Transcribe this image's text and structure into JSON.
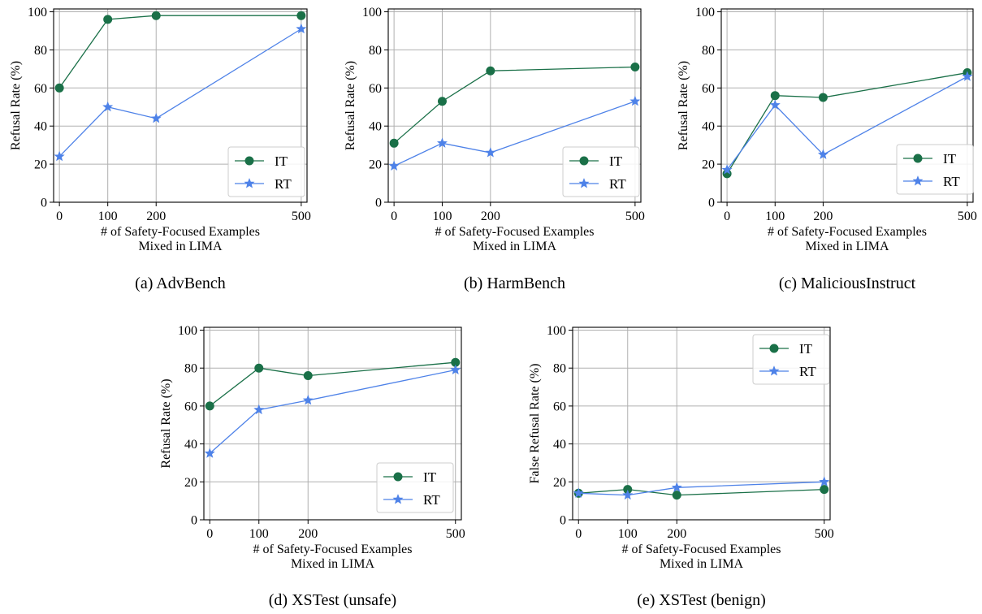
{
  "colors": {
    "IT": "#1a7048",
    "RT": "#4e82e8",
    "grid": "#b0b0b0",
    "frame": "#000000"
  },
  "chart_data": [
    {
      "type": "line",
      "caption": "(a) AdvBench",
      "ylabel": "Refusal Rate (%)",
      "xlabel": [
        "# of Safety-Focused Examples",
        "Mixed in LIMA"
      ],
      "x": [
        0,
        100,
        200,
        500
      ],
      "xticks": [
        "0",
        "100",
        "200",
        "500"
      ],
      "yticks": [
        "0",
        "20",
        "40",
        "60",
        "80",
        "100"
      ],
      "ylim": [
        0,
        100
      ],
      "grid": true,
      "legend_position": "lower-right",
      "series": [
        {
          "name": "IT",
          "marker": "circle",
          "values": [
            60,
            96,
            98,
            98
          ]
        },
        {
          "name": "RT",
          "marker": "star",
          "values": [
            24,
            50,
            44,
            91
          ]
        }
      ]
    },
    {
      "type": "line",
      "caption": "(b) HarmBench",
      "ylabel": "Refusal Rate (%)",
      "xlabel": [
        "# of Safety-Focused Examples",
        "Mixed in LIMA"
      ],
      "x": [
        0,
        100,
        200,
        500
      ],
      "xticks": [
        "0",
        "100",
        "200",
        "500"
      ],
      "yticks": [
        "0",
        "20",
        "40",
        "60",
        "80",
        "100"
      ],
      "ylim": [
        0,
        100
      ],
      "grid": true,
      "legend_position": "lower-right",
      "series": [
        {
          "name": "IT",
          "marker": "circle",
          "values": [
            31,
            53,
            69,
            71
          ]
        },
        {
          "name": "RT",
          "marker": "star",
          "values": [
            19,
            31,
            26,
            53
          ]
        }
      ]
    },
    {
      "type": "line",
      "caption": "(c) MaliciousInstruct",
      "ylabel": "Refusal Rate (%)",
      "xlabel": [
        "# of Safety-Focused Examples",
        "Mixed in LIMA"
      ],
      "x": [
        0,
        100,
        200,
        500
      ],
      "xticks": [
        "0",
        "100",
        "200",
        "500"
      ],
      "yticks": [
        "0",
        "20",
        "40",
        "60",
        "80",
        "100"
      ],
      "ylim": [
        0,
        100
      ],
      "grid": true,
      "legend_position": "lower-right",
      "series": [
        {
          "name": "IT",
          "marker": "circle",
          "values": [
            15,
            56,
            55,
            68
          ]
        },
        {
          "name": "RT",
          "marker": "star",
          "values": [
            17,
            51,
            25,
            66
          ]
        }
      ]
    },
    {
      "type": "line",
      "caption": "(d) XSTest (unsafe)",
      "ylabel": "Refusal Rate (%)",
      "xlabel": [
        "# of Safety-Focused Examples",
        "Mixed in LIMA"
      ],
      "x": [
        0,
        100,
        200,
        500
      ],
      "xticks": [
        "0",
        "100",
        "200",
        "500"
      ],
      "yticks": [
        "0",
        "20",
        "40",
        "60",
        "80",
        "100"
      ],
      "ylim": [
        0,
        100
      ],
      "grid": true,
      "legend_position": "lower-right",
      "series": [
        {
          "name": "IT",
          "marker": "circle",
          "values": [
            60,
            80,
            76,
            83
          ]
        },
        {
          "name": "RT",
          "marker": "star",
          "values": [
            35,
            58,
            63,
            79
          ]
        }
      ]
    },
    {
      "type": "line",
      "caption": "(e) XSTest (benign)",
      "ylabel": "False Refusal Rate (%)",
      "xlabel": [
        "# of Safety-Focused Examples",
        "Mixed in LIMA"
      ],
      "x": [
        0,
        100,
        200,
        500
      ],
      "xticks": [
        "0",
        "100",
        "200",
        "500"
      ],
      "yticks": [
        "0",
        "20",
        "40",
        "60",
        "80",
        "100"
      ],
      "ylim": [
        0,
        100
      ],
      "grid": true,
      "legend_position": "upper-right",
      "series": [
        {
          "name": "IT",
          "marker": "circle",
          "values": [
            14,
            16,
            13,
            16
          ]
        },
        {
          "name": "RT",
          "marker": "star",
          "values": [
            14,
            13,
            17,
            20
          ]
        }
      ]
    }
  ]
}
